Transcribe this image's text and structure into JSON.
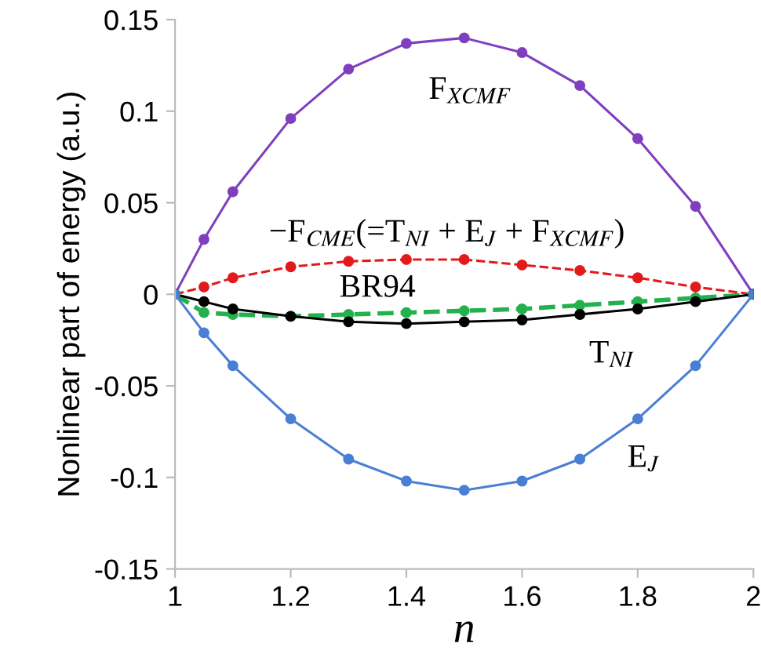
{
  "chart_data": {
    "type": "line",
    "xlabel": "n",
    "ylabel": "Nonlinear part of energy (a.u.)",
    "x": [
      1,
      1.05,
      1.1,
      1.2,
      1.3,
      1.4,
      1.5,
      1.6,
      1.7,
      1.8,
      1.9,
      2
    ],
    "series": [
      {
        "color": "#7f3fbf",
        "line_style": "solid",
        "values": [
          0,
          0.03,
          0.056,
          0.096,
          0.123,
          0.137,
          0.14,
          0.132,
          0.114,
          0.085,
          0.048,
          0
        ]
      },
      {
        "color": "#e31a1c",
        "line_style": "dashed",
        "values": [
          0,
          0.004,
          0.009,
          0.015,
          0.018,
          0.019,
          0.019,
          0.016,
          0.013,
          0.009,
          0.004,
          0
        ]
      },
      {
        "color": "#22b14c",
        "line_style": "dashed",
        "values": [
          0,
          -0.01,
          -0.011,
          -0.012,
          -0.011,
          -0.01,
          -0.009,
          -0.008,
          -0.006,
          -0.004,
          -0.002,
          0
        ]
      },
      {
        "color": "#000000",
        "line_style": "solid",
        "values": [
          0,
          -0.004,
          -0.008,
          -0.012,
          -0.015,
          -0.016,
          -0.015,
          -0.014,
          -0.011,
          -0.008,
          -0.004,
          0
        ]
      },
      {
        "color": "#4a7fd4",
        "line_style": "solid",
        "values": [
          0,
          -0.021,
          -0.039,
          -0.068,
          -0.09,
          -0.102,
          -0.107,
          -0.102,
          -0.09,
          -0.068,
          -0.039,
          0
        ]
      }
    ],
    "marker": "circle",
    "xlim": [
      1,
      2
    ],
    "xticks": [
      1,
      1.2,
      1.4,
      1.6,
      1.8,
      2
    ],
    "ylim": [
      -0.15,
      0.15
    ],
    "yticks": [
      -0.15,
      -0.1,
      -0.05,
      0,
      0.05,
      0.1,
      0.15
    ],
    "grid": false,
    "legend": false,
    "annotations": [
      "F$_{XCMF}$",
      "−F$_{CME}$(=T$_{NI}$ + E$_{J}$ + F$_{XCMF}$)",
      "BR94",
      "T$_{NI}$",
      "E$_{J}$"
    ]
  }
}
